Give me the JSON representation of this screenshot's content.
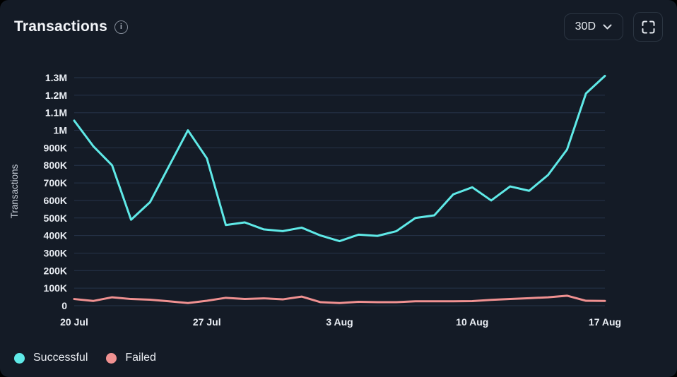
{
  "header": {
    "title": "Transactions",
    "range_label": "30D"
  },
  "colors": {
    "background": "#141B26",
    "grid": "#26344A",
    "tick_text": "#E9EDF3",
    "axis_title_text": "#C3CAD4",
    "control_border": "#2B3542",
    "successful": "#5FE9E7",
    "failed": "#F09191"
  },
  "chart_data": {
    "type": "line",
    "title": "Transactions",
    "xlabel": "",
    "ylabel": "Transactions",
    "ylim": [
      0,
      1300000
    ],
    "grid": true,
    "legend_position": "bottom-left",
    "x_ticks": [
      {
        "index": 0,
        "label": "20 Jul"
      },
      {
        "index": 7,
        "label": "27 Jul"
      },
      {
        "index": 14,
        "label": "3 Aug"
      },
      {
        "index": 21,
        "label": "10 Aug"
      },
      {
        "index": 28,
        "label": "17 Aug"
      }
    ],
    "y_ticks": [
      {
        "value": 0,
        "label": "0"
      },
      {
        "value": 100000,
        "label": "100K"
      },
      {
        "value": 200000,
        "label": "200K"
      },
      {
        "value": 300000,
        "label": "300K"
      },
      {
        "value": 400000,
        "label": "400K"
      },
      {
        "value": 500000,
        "label": "500K"
      },
      {
        "value": 600000,
        "label": "600K"
      },
      {
        "value": 700000,
        "label": "700K"
      },
      {
        "value": 800000,
        "label": "800K"
      },
      {
        "value": 900000,
        "label": "900K"
      },
      {
        "value": 1000000,
        "label": "1M"
      },
      {
        "value": 1100000,
        "label": "1.1M"
      },
      {
        "value": 1200000,
        "label": "1.2M"
      },
      {
        "value": 1300000,
        "label": "1.3M"
      }
    ],
    "series": [
      {
        "name": "Successful",
        "color": "#5FE9E7",
        "values": [
          1055000,
          910000,
          800000,
          490000,
          590000,
          795000,
          1000000,
          840000,
          460000,
          475000,
          435000,
          425000,
          445000,
          400000,
          368000,
          405000,
          398000,
          425000,
          500000,
          515000,
          635000,
          675000,
          600000,
          680000,
          655000,
          745000,
          890000,
          1210000,
          1310000
        ]
      },
      {
        "name": "Failed",
        "color": "#F09191",
        "values": [
          38000,
          27000,
          48000,
          38000,
          34000,
          25000,
          15000,
          28000,
          45000,
          38000,
          42000,
          36000,
          52000,
          20000,
          15000,
          22000,
          20000,
          20000,
          25000,
          25000,
          25000,
          26000,
          33000,
          38000,
          43000,
          48000,
          57000,
          28000,
          27000
        ]
      }
    ]
  }
}
